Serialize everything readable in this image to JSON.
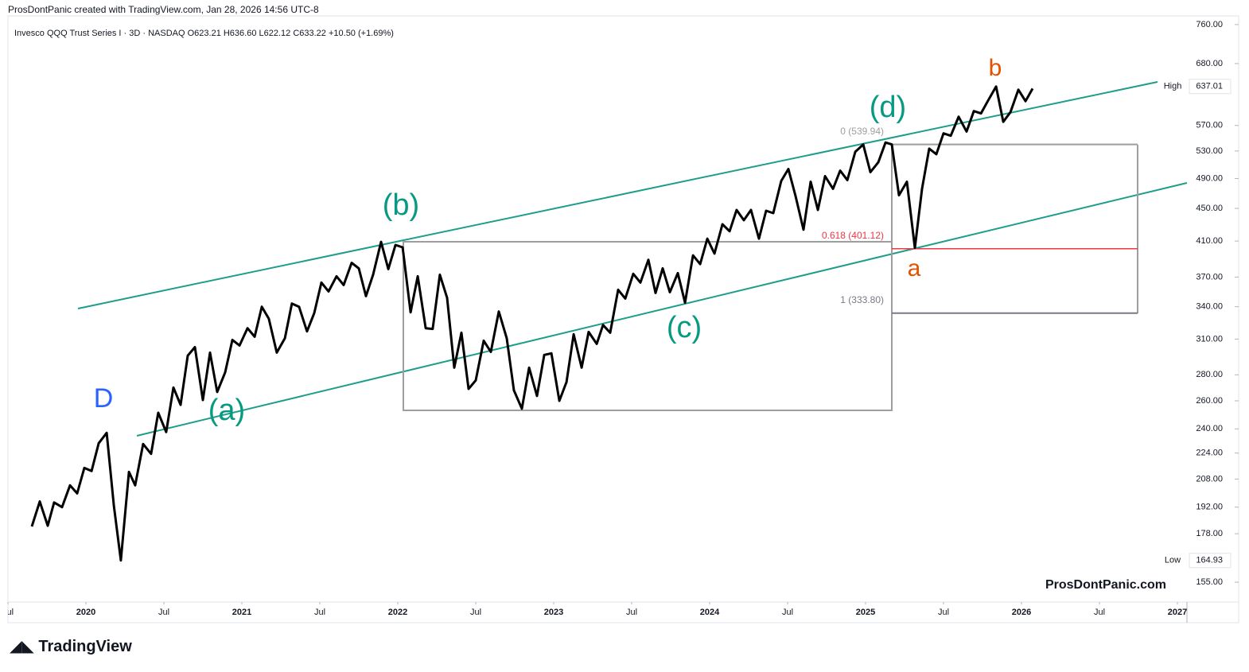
{
  "header": {
    "attribution": "ProsDontPanic created with TradingView.com, Jan 28, 2026 14:56 UTC-8",
    "legend": "Invesco QQQ Trust Series I · 3D · NASDAQ  O623.21 H636.60 L622.12 C633.22 +10.50 (+1.69%)"
  },
  "watermark": "ProsDontPanic.com",
  "footer": "TradingView",
  "chart_data": {
    "type": "line",
    "log_scale": true,
    "grid": false,
    "x": [
      2019.653,
      2019.704,
      2019.755,
      2019.796,
      2019.847,
      2019.898,
      2019.944,
      2019.99,
      2020.036,
      2020.082,
      2020.133,
      2020.179,
      2020.224,
      2020.276,
      2020.316,
      2020.367,
      2020.418,
      2020.464,
      2020.515,
      2020.561,
      2020.607,
      2020.653,
      2020.699,
      2020.75,
      2020.796,
      2020.842,
      2020.893,
      2020.939,
      2020.985,
      2021.036,
      2021.082,
      2021.128,
      2021.173,
      2021.224,
      2021.276,
      2021.321,
      2021.367,
      2021.418,
      2021.464,
      2021.51,
      2021.556,
      2021.607,
      2021.653,
      2021.704,
      2021.75,
      2021.796,
      2021.842,
      2021.893,
      2021.939,
      2021.985,
      2022.031,
      2022.082,
      2022.128,
      2022.179,
      2022.224,
      2022.27,
      2022.316,
      2022.362,
      2022.408,
      2022.454,
      2022.5,
      2022.551,
      2022.597,
      2022.648,
      2022.699,
      2022.745,
      2022.796,
      2022.842,
      2022.893,
      2022.939,
      2022.985,
      2023.036,
      2023.082,
      2023.128,
      2023.179,
      2023.224,
      2023.276,
      2023.316,
      2023.362,
      2023.413,
      2023.459,
      2023.51,
      2023.556,
      2023.607,
      2023.653,
      2023.699,
      2023.745,
      2023.796,
      2023.842,
      2023.893,
      2023.939,
      2023.985,
      2024.031,
      2024.082,
      2024.128,
      2024.173,
      2024.219,
      2024.265,
      2024.316,
      2024.362,
      2024.408,
      2024.459,
      2024.505,
      2024.551,
      2024.602,
      2024.648,
      2024.694,
      2024.74,
      2024.791,
      2024.837,
      2024.883,
      2024.934,
      2024.985,
      2025.031,
      2025.082,
      2025.128,
      2025.168,
      2025.214,
      2025.265,
      2025.316,
      2025.362,
      2025.408,
      2025.454,
      2025.5,
      2025.546,
      2025.597,
      2025.648,
      2025.694,
      2025.74,
      2025.786,
      2025.837,
      2025.883,
      2025.929,
      2025.98,
      2026.026,
      2026.071
    ],
    "series": [
      {
        "color": "#000000",
        "values": [
          181.7,
          195.1,
          182.1,
          194.6,
          192,
          204.3,
          199.7,
          214.7,
          212.8,
          230.4,
          237.3,
          192.9,
          164.93,
          212.3,
          204.3,
          229.9,
          223.5,
          251.3,
          237.8,
          270,
          257,
          295.7,
          303,
          260.6,
          298.3,
          266.6,
          281.9,
          309.3,
          304.4,
          319.8,
          312.1,
          340,
          328.6,
          298.3,
          310.7,
          343.1,
          340,
          316.9,
          333.9,
          364.2,
          355.2,
          370.8,
          361.7,
          385.3,
          379.3,
          350.4,
          372.5,
          409.1,
          378.5,
          405.4,
          402.7,
          334.6,
          370.8,
          319.8,
          319.1,
          372.5,
          348.8,
          285.8,
          315.7,
          269,
          275.6,
          308.6,
          298.9,
          335.4,
          310.7,
          267.8,
          254.2,
          285.8,
          263.6,
          296.3,
          297.7,
          260,
          274.3,
          314.3,
          285.8,
          316.4,
          305.8,
          322.7,
          315.7,
          356.8,
          348,
          373.4,
          364.2,
          388.6,
          353.6,
          379.3,
          354.4,
          374.2,
          343.9,
          393.6,
          383.9,
          412.8,
          395.6,
          430.1,
          421.6,
          448,
          435.1,
          448,
          412.8,
          447,
          444,
          486.7,
          503.5,
          466.1,
          423.5,
          485.6,
          448,
          493.3,
          475.8,
          501.2,
          487.8,
          528.8,
          539.94,
          498.9,
          513.4,
          543,
          540,
          467.2,
          485.6,
          402,
          475.8,
          533.6,
          525.2,
          557.3,
          553.5,
          584.4,
          560.2,
          593.9,
          590,
          612.2,
          637.01,
          575.9,
          592,
          631.2,
          610.9,
          633.22
        ]
      }
    ],
    "xlim": [
      2019.5,
      2027.061
    ],
    "xticks": [
      {
        "value": 2019.5,
        "label": "Jul"
      },
      2020,
      {
        "value": 2020.5,
        "label": "Jul"
      },
      2021,
      {
        "value": 2021.5,
        "label": "Jul"
      },
      2022,
      {
        "value": 2022.5,
        "label": "Jul"
      },
      2023,
      {
        "value": 2023.5,
        "label": "Jul"
      },
      2024,
      {
        "value": 2024.5,
        "label": "Jul"
      },
      2025,
      {
        "value": 2025.5,
        "label": "Jul"
      },
      2026,
      {
        "value": 2026.5,
        "label": "Jul"
      },
      2027
    ],
    "ylim": [
      146.5,
      779
    ],
    "yticks": [
      {
        "value": 760,
        "label": "760.00"
      },
      {
        "value": 680,
        "label": "680.00"
      },
      {
        "value": 570,
        "label": "570.00"
      },
      {
        "value": 530,
        "label": "530.00"
      },
      {
        "value": 490,
        "label": "490.00"
      },
      {
        "value": 450,
        "label": "450.00"
      },
      {
        "value": 410,
        "label": "410.00"
      },
      {
        "value": 370,
        "label": "370.00"
      },
      {
        "value": 340,
        "label": "340.00"
      },
      {
        "value": 310,
        "label": "310.00"
      },
      {
        "value": 280,
        "label": "280.00"
      },
      {
        "value": 260,
        "label": "260.00"
      },
      {
        "value": 240,
        "label": "240.00"
      },
      {
        "value": 224,
        "label": "224.00"
      },
      {
        "value": 208,
        "label": "208.00"
      },
      {
        "value": 192,
        "label": "192.00"
      },
      {
        "value": 178,
        "label": "178.00"
      },
      {
        "value": 155,
        "label": "155.00"
      }
    ],
    "price_labels": [
      {
        "name": "High",
        "value": 637.01
      },
      {
        "name": "Low",
        "value": 164.93
      }
    ],
    "fib_levels": [
      {
        "level": 0,
        "price": 539.94,
        "label": "0 (539.94)",
        "color": "#9e9e9e"
      },
      {
        "level": 0.618,
        "price": 401.12,
        "label": "0.618 (401.12)",
        "color": "#f23645"
      },
      {
        "level": 1,
        "price": 333.8,
        "label": "1 (333.80)",
        "color": "#787b86"
      }
    ],
    "wave_labels": [
      {
        "text": "D",
        "color": "#2962ff"
      },
      {
        "text": "(a)",
        "color": "#089981"
      },
      {
        "text": "(b)",
        "color": "#089981"
      },
      {
        "text": "(c)",
        "color": "#089981"
      },
      {
        "text": "(d)",
        "color": "#089981"
      },
      {
        "text": "a",
        "color": "#e65100"
      },
      {
        "text": "b",
        "color": "#e65100"
      }
    ]
  }
}
